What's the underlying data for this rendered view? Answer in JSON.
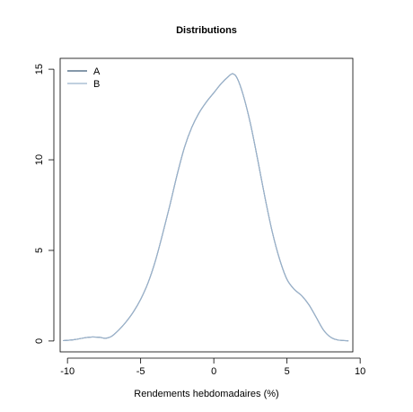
{
  "chart_data": {
    "type": "line",
    "title": "Distributions",
    "xlabel": "Rendements hebdomadaires (%)",
    "ylabel": "",
    "xlim": [
      -10.5,
      9.5
    ],
    "ylim": [
      0,
      15
    ],
    "xticks": [
      -10,
      -5,
      0,
      5,
      10
    ],
    "yticks": [
      0,
      5,
      10,
      15
    ],
    "grid": false,
    "legend_position": "top-left",
    "series": [
      {
        "name": "A",
        "color": "#3c5a78",
        "x": [
          -10.3,
          -9.5,
          -8.8,
          -8.3,
          -7.8,
          -7.4,
          -7.0,
          -6.5,
          -6.0,
          -5.5,
          -5.0,
          -4.5,
          -4.0,
          -3.5,
          -3.0,
          -2.5,
          -2.0,
          -1.5,
          -1.0,
          -0.5,
          0.0,
          0.5,
          1.0,
          1.3,
          1.6,
          2.0,
          2.5,
          3.0,
          3.5,
          4.0,
          4.5,
          5.0,
          5.5,
          6.0,
          6.5,
          7.0,
          7.5,
          8.0,
          8.5,
          9.2
        ],
        "y": [
          0.02,
          0.08,
          0.18,
          0.22,
          0.2,
          0.15,
          0.25,
          0.6,
          1.05,
          1.6,
          2.3,
          3.2,
          4.4,
          5.9,
          7.5,
          9.2,
          10.7,
          11.8,
          12.6,
          13.2,
          13.7,
          14.2,
          14.6,
          14.75,
          14.5,
          13.6,
          12.0,
          10.0,
          7.9,
          6.0,
          4.5,
          3.4,
          2.85,
          2.5,
          2.0,
          1.3,
          0.6,
          0.2,
          0.05,
          0.01
        ]
      },
      {
        "name": "B",
        "color": "#9bb3cc",
        "x": [
          -10.3,
          -9.5,
          -8.8,
          -8.3,
          -7.8,
          -7.4,
          -7.0,
          -6.5,
          -6.0,
          -5.5,
          -5.0,
          -4.5,
          -4.0,
          -3.5,
          -3.0,
          -2.5,
          -2.0,
          -1.5,
          -1.0,
          -0.5,
          0.0,
          0.5,
          1.0,
          1.3,
          1.6,
          2.0,
          2.5,
          3.0,
          3.5,
          4.0,
          4.5,
          5.0,
          5.5,
          6.0,
          6.5,
          7.0,
          7.5,
          8.0,
          8.5,
          9.2
        ],
        "y": [
          0.02,
          0.08,
          0.18,
          0.22,
          0.2,
          0.15,
          0.25,
          0.6,
          1.05,
          1.6,
          2.3,
          3.2,
          4.4,
          5.9,
          7.5,
          9.2,
          10.7,
          11.8,
          12.6,
          13.2,
          13.7,
          14.2,
          14.6,
          14.75,
          14.5,
          13.6,
          12.0,
          10.0,
          7.9,
          6.0,
          4.5,
          3.4,
          2.85,
          2.5,
          2.0,
          1.3,
          0.6,
          0.2,
          0.05,
          0.01
        ]
      }
    ]
  }
}
